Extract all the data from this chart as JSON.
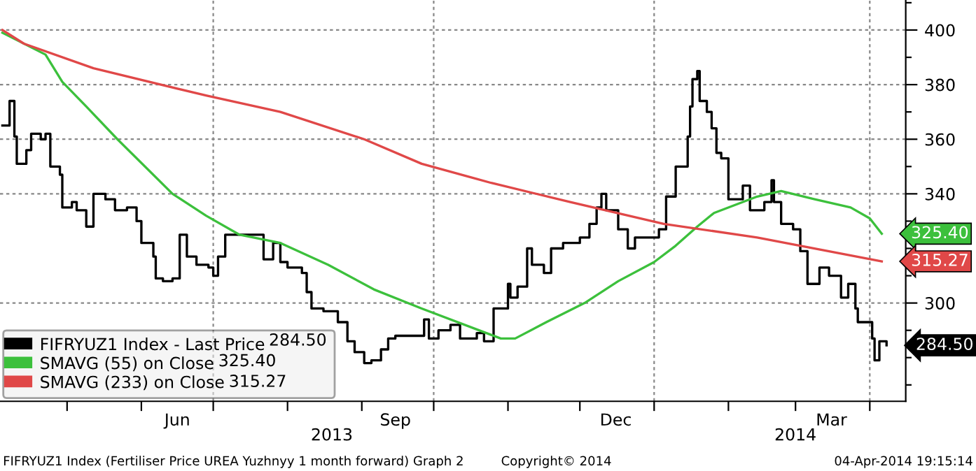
{
  "chart_data": {
    "type": "line",
    "x": [
      "2013-04-04",
      "2013-04-07",
      "2013-04-09",
      "2013-04-10",
      "2013-04-14",
      "2013-04-16",
      "2013-04-20",
      "2013-04-22",
      "2013-04-24",
      "2013-04-28",
      "2013-04-29",
      "2013-05-03",
      "2013-05-05",
      "2013-05-09",
      "2013-05-12",
      "2013-05-17",
      "2013-05-21",
      "2013-05-26",
      "2013-05-30",
      "2013-06-01",
      "2013-06-06",
      "2013-06-07",
      "2013-06-10",
      "2013-06-14",
      "2013-06-17",
      "2013-06-20",
      "2013-06-24",
      "2013-06-29",
      "2013-07-01",
      "2013-07-03",
      "2013-07-06",
      "2013-07-20",
      "2013-07-22",
      "2013-07-26",
      "2013-07-29",
      "2013-08-01",
      "2013-08-07",
      "2013-08-09",
      "2013-08-11",
      "2013-08-16",
      "2013-08-22",
      "2013-08-26",
      "2013-08-29",
      "2013-09-02",
      "2013-09-05",
      "2013-09-09",
      "2013-09-12",
      "2013-09-15",
      "2013-09-27",
      "2013-09-29",
      "2013-10-03",
      "2013-10-08",
      "2013-10-12",
      "2013-10-19",
      "2013-10-22",
      "2013-10-26",
      "2013-11-01",
      "2013-11-02",
      "2013-11-05",
      "2013-11-09",
      "2013-11-11",
      "2013-11-16",
      "2013-11-19",
      "2013-11-24",
      "2013-12-01",
      "2013-12-05",
      "2013-12-08",
      "2013-12-10",
      "2013-12-12",
      "2013-12-17",
      "2013-12-21",
      "2013-12-24",
      "2014-01-03",
      "2014-01-06",
      "2014-01-10",
      "2014-01-15",
      "2014-01-16",
      "2014-01-17",
      "2014-01-19",
      "2014-01-20",
      "2014-01-23",
      "2014-01-25",
      "2014-01-27",
      "2014-01-29",
      "2014-02-01",
      "2014-02-07",
      "2014-02-10",
      "2014-02-16",
      "2014-02-19",
      "2014-02-20",
      "2014-02-23",
      "2014-02-28",
      "2014-03-03",
      "2014-03-06",
      "2014-03-11",
      "2014-03-15",
      "2014-03-20",
      "2014-03-23",
      "2014-03-26",
      "2014-03-27",
      "2014-04-02",
      "2014-04-03",
      "2014-04-05",
      "2014-04-08"
    ],
    "series": [
      {
        "name": "FIFRYUZ1 Index - Last Price",
        "type": "step",
        "color": "#000000",
        "values": [
          365,
          374,
          361,
          351,
          356,
          362,
          360,
          362,
          350,
          347,
          335,
          337,
          334,
          328,
          340,
          338,
          334,
          335,
          330,
          322,
          317,
          309,
          308,
          309,
          325,
          317,
          314,
          313,
          310,
          317,
          325,
          325,
          316,
          322,
          315,
          313,
          311,
          304,
          298,
          297,
          293,
          286,
          282,
          278,
          279,
          283,
          287,
          288,
          294,
          287,
          290,
          292,
          287,
          289,
          286,
          298,
          307,
          302,
          306,
          320,
          314,
          311,
          320,
          322,
          324,
          329,
          335,
          340,
          334,
          327,
          320,
          324,
          327,
          339,
          350,
          361,
          372,
          382,
          385,
          374,
          370,
          364,
          355,
          353,
          338,
          343,
          334,
          337,
          345,
          337,
          329,
          327,
          319,
          307,
          313,
          310,
          302,
          307,
          298,
          293,
          287,
          279,
          286,
          284.5
        ],
        "value_labels": [
          null,
          null,
          null,
          null,
          null,
          null,
          null,
          null,
          null,
          null,
          null,
          null,
          null,
          null,
          null,
          null,
          null,
          null,
          null,
          null,
          null,
          null,
          null,
          null,
          null,
          null,
          null,
          null,
          null,
          null,
          null,
          null,
          null,
          null,
          null,
          null,
          null,
          null,
          null,
          null,
          null,
          null,
          null,
          null,
          null,
          null,
          null,
          null,
          null,
          null,
          null,
          null,
          null,
          null,
          null,
          null,
          null,
          null,
          null,
          null,
          null,
          null,
          null,
          null,
          null,
          null,
          null,
          null,
          null,
          null,
          null,
          null,
          null,
          null,
          null,
          null,
          null,
          null,
          null,
          null,
          null,
          null,
          null,
          null,
          null,
          null,
          null,
          null,
          null,
          null,
          null,
          null,
          null,
          null,
          null,
          null,
          null,
          null,
          null,
          null,
          null,
          null,
          null,
          "284.50"
        ]
      },
      {
        "name": "SMAVG (55) on Close",
        "color": "#3cc03c",
        "x": [
          "2013-04-04",
          "2013-04-22",
          "2013-04-29",
          "2013-05-09",
          "2013-05-22",
          "2013-06-14",
          "2013-06-28",
          "2013-07-12",
          "2013-07-29",
          "2013-08-18",
          "2013-09-06",
          "2013-09-26",
          "2013-10-23",
          "2013-10-29",
          "2013-11-04",
          "2013-11-17",
          "2013-12-03",
          "2013-12-17",
          "2014-01-01",
          "2014-01-10",
          "2014-01-19",
          "2014-01-26",
          "2014-02-13",
          "2014-02-23",
          "2014-03-09",
          "2014-03-24",
          "2014-04-01",
          "2014-04-06"
        ],
        "values": [
          399,
          391,
          381,
          372,
          360,
          340,
          332,
          325,
          322,
          314,
          305,
          298,
          289,
          287,
          287,
          293,
          300,
          308,
          315,
          321,
          328,
          333,
          339,
          341,
          338,
          335,
          331,
          325.4
        ],
        "value_labels": [
          null,
          null,
          null,
          null,
          null,
          null,
          null,
          null,
          null,
          null,
          null,
          null,
          null,
          null,
          null,
          null,
          null,
          null,
          null,
          null,
          null,
          null,
          null,
          null,
          null,
          null,
          null,
          "325.40"
        ]
      },
      {
        "name": "SMAVG (233) on Close",
        "color": "#e04848",
        "x": [
          "2013-04-04",
          "2013-04-13",
          "2013-05-12",
          "2013-06-28",
          "2013-07-29",
          "2013-09-02",
          "2013-09-26",
          "2013-10-25",
          "2013-11-27",
          "2014-01-05",
          "2014-02-13",
          "2014-04-06"
        ],
        "values": [
          400,
          395,
          386,
          376,
          370,
          360,
          351,
          344,
          337,
          329,
          324,
          315.27
        ],
        "value_labels": [
          null,
          null,
          null,
          null,
          null,
          null,
          null,
          null,
          null,
          null,
          null,
          "315.27"
        ]
      }
    ],
    "xlim": [
      "2013-04-03",
      "2014-04-16"
    ],
    "xticks": [
      {
        "value": "2013-05-01",
        "label": null
      },
      {
        "value": "2013-06-01",
        "label": null
      },
      {
        "value": "2013-06-16",
        "label": "Jun"
      },
      {
        "value": "2013-07-01",
        "label": null
      },
      {
        "value": "2013-08-01",
        "label": null
      },
      {
        "value": "2013-09-01",
        "label": null
      },
      {
        "value": "2013-09-15",
        "label": "Sep"
      },
      {
        "value": "2013-10-01",
        "label": null
      },
      {
        "value": "2013-11-01",
        "label": null
      },
      {
        "value": "2013-12-01",
        "label": null
      },
      {
        "value": "2013-12-16",
        "label": "Dec"
      },
      {
        "value": "2014-01-01",
        "label": null
      },
      {
        "value": "2014-02-01",
        "label": null
      },
      {
        "value": "2014-03-01",
        "label": null
      },
      {
        "value": "2014-03-16",
        "label": "Mar"
      },
      {
        "value": "2014-04-01",
        "label": null
      }
    ],
    "ylim": [
      264,
      411
    ],
    "yticks": [
      {
        "value": 270,
        "label": null
      },
      {
        "value": 280,
        "label": null
      },
      {
        "value": 290,
        "label": null
      },
      300,
      {
        "value": 310,
        "label": null
      },
      {
        "value": 320,
        "label": null
      },
      {
        "value": 330,
        "label": null
      },
      340,
      {
        "value": 350,
        "label": null
      },
      360,
      {
        "value": 370,
        "label": null
      },
      380,
      {
        "value": 390,
        "label": null
      },
      400,
      {
        "value": 410,
        "label": null
      }
    ],
    "grid": true,
    "legend": "bottom left",
    "annotations": [
      "2013",
      "2014",
      "FIFRYUZ1 Index (Fertiliser Price UREA Yuzhnyy 1 month forward) Graph 2",
      "Copyright© 2014",
      "04-Apr-2014 19:15:14"
    ]
  }
}
